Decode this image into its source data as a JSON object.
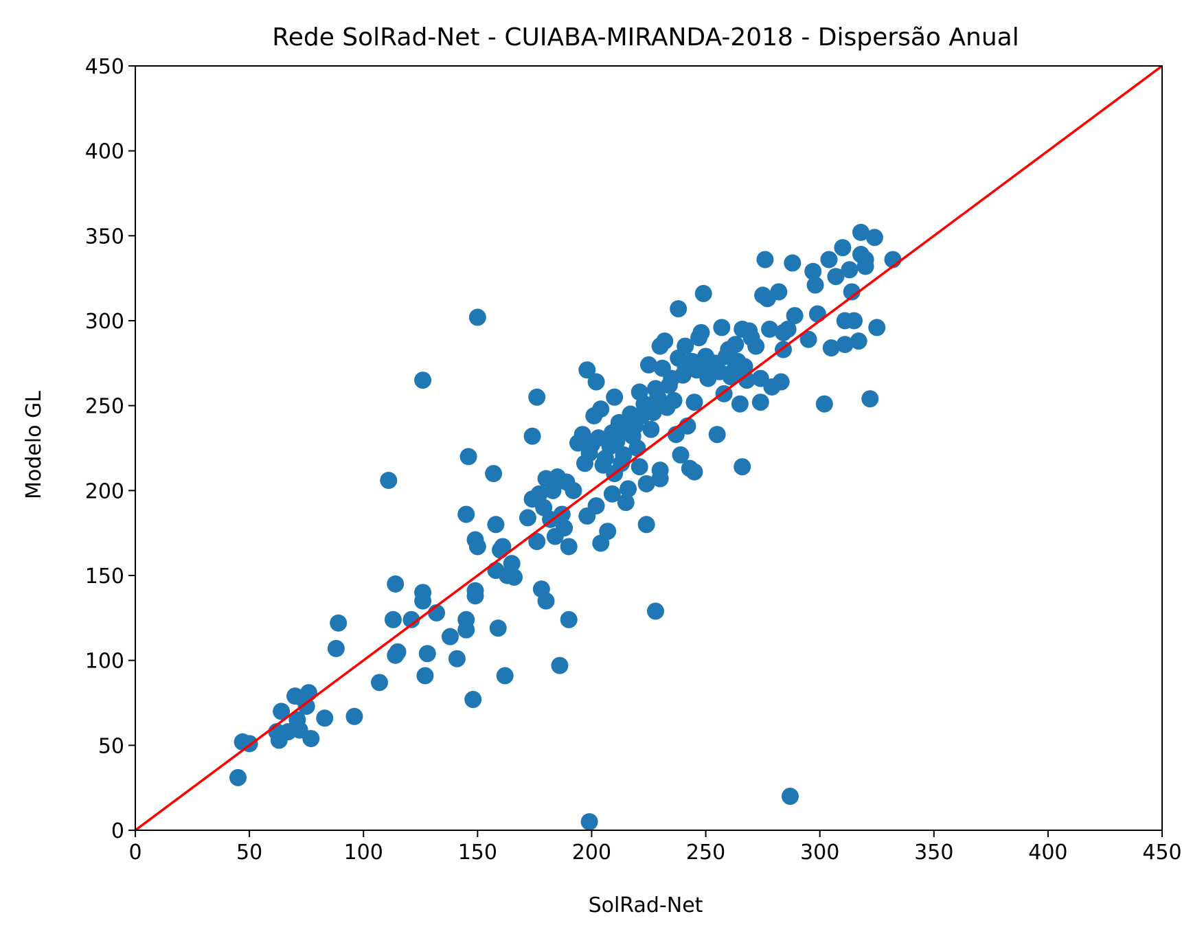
{
  "colors": {
    "points": "#1f77b4",
    "reference_line": "#ff0000",
    "axes": "#000000",
    "background": "#ffffff"
  },
  "chart_data": {
    "type": "scatter",
    "title": "Rede SolRad-Net - CUIABA-MIRANDA-2018 - Dispersão Anual",
    "xlabel": "SolRad-Net",
    "ylabel": "Modelo GL",
    "xlim": [
      0,
      450
    ],
    "ylim": [
      0,
      450
    ],
    "xticks": [
      0,
      50,
      100,
      150,
      200,
      250,
      300,
      350,
      400,
      450
    ],
    "yticks": [
      0,
      50,
      100,
      150,
      200,
      250,
      300,
      350,
      400,
      450
    ],
    "grid": false,
    "legend": "none",
    "reference_line": {
      "x": [
        0,
        450
      ],
      "y": [
        0,
        450
      ]
    },
    "series": [
      {
        "points": [
          [
            45,
            31
          ],
          [
            47,
            52
          ],
          [
            50,
            51
          ],
          [
            62,
            58
          ],
          [
            63,
            53
          ],
          [
            64,
            70
          ],
          [
            67,
            58
          ],
          [
            70,
            79
          ],
          [
            71,
            65
          ],
          [
            72,
            59
          ],
          [
            73,
            78
          ],
          [
            75,
            73
          ],
          [
            76,
            81
          ],
          [
            77,
            54
          ],
          [
            83,
            66
          ],
          [
            88,
            107
          ],
          [
            89,
            122
          ],
          [
            96,
            67
          ],
          [
            107,
            87
          ],
          [
            111,
            206
          ],
          [
            113,
            124
          ],
          [
            114,
            103
          ],
          [
            114,
            145
          ],
          [
            115,
            105
          ],
          [
            121,
            124
          ],
          [
            126,
            140
          ],
          [
            126,
            135
          ],
          [
            126,
            265
          ],
          [
            127,
            91
          ],
          [
            128,
            104
          ],
          [
            132,
            128
          ],
          [
            138,
            114
          ],
          [
            141,
            101
          ],
          [
            145,
            186
          ],
          [
            145,
            124
          ],
          [
            145,
            118
          ],
          [
            146,
            220
          ],
          [
            148,
            77
          ],
          [
            149,
            141
          ],
          [
            149,
            138
          ],
          [
            149,
            171
          ],
          [
            150,
            302
          ],
          [
            150,
            167
          ],
          [
            157,
            210
          ],
          [
            158,
            180
          ],
          [
            158,
            153
          ],
          [
            159,
            119
          ],
          [
            160,
            165
          ],
          [
            161,
            167
          ],
          [
            162,
            91
          ],
          [
            163,
            150
          ],
          [
            165,
            157
          ],
          [
            166,
            149
          ],
          [
            172,
            184
          ],
          [
            174,
            232
          ],
          [
            174,
            195
          ],
          [
            176,
            170
          ],
          [
            176,
            255
          ],
          [
            177,
            198
          ],
          [
            178,
            142
          ],
          [
            179,
            190
          ],
          [
            180,
            135
          ],
          [
            180,
            207
          ],
          [
            182,
            183
          ],
          [
            183,
            200
          ],
          [
            184,
            173
          ],
          [
            185,
            208
          ],
          [
            186,
            97
          ],
          [
            187,
            186
          ],
          [
            188,
            178
          ],
          [
            189,
            205
          ],
          [
            190,
            124
          ],
          [
            190,
            167
          ],
          [
            192,
            200
          ],
          [
            194,
            228
          ],
          [
            196,
            233
          ],
          [
            197,
            216
          ],
          [
            198,
            271
          ],
          [
            198,
            185
          ],
          [
            199,
            5
          ],
          [
            199,
            222
          ],
          [
            200,
            227
          ],
          [
            201,
            244
          ],
          [
            202,
            264
          ],
          [
            202,
            191
          ],
          [
            203,
            231
          ],
          [
            204,
            169
          ],
          [
            204,
            248
          ],
          [
            205,
            215
          ],
          [
            206,
            219
          ],
          [
            207,
            176
          ],
          [
            208,
            226
          ],
          [
            209,
            198
          ],
          [
            209,
            234
          ],
          [
            210,
            255
          ],
          [
            210,
            210
          ],
          [
            211,
            229
          ],
          [
            212,
            240
          ],
          [
            213,
            216
          ],
          [
            214,
            221
          ],
          [
            214,
            236
          ],
          [
            215,
            193
          ],
          [
            216,
            201
          ],
          [
            217,
            245
          ],
          [
            218,
            232
          ],
          [
            219,
            238
          ],
          [
            220,
            225
          ],
          [
            221,
            258
          ],
          [
            221,
            214
          ],
          [
            222,
            244
          ],
          [
            223,
            251
          ],
          [
            224,
            180
          ],
          [
            224,
            204
          ],
          [
            225,
            274
          ],
          [
            226,
            236
          ],
          [
            227,
            246
          ],
          [
            228,
            129
          ],
          [
            228,
            260
          ],
          [
            229,
            255
          ],
          [
            230,
            207
          ],
          [
            230,
            212
          ],
          [
            230,
            285
          ],
          [
            231,
            272
          ],
          [
            232,
            288
          ],
          [
            233,
            249
          ],
          [
            234,
            262
          ],
          [
            235,
            266
          ],
          [
            236,
            253
          ],
          [
            237,
            233
          ],
          [
            238,
            278
          ],
          [
            238,
            307
          ],
          [
            239,
            221
          ],
          [
            240,
            268
          ],
          [
            241,
            274
          ],
          [
            241,
            285
          ],
          [
            242,
            238
          ],
          [
            243,
            213
          ],
          [
            244,
            276
          ],
          [
            245,
            211
          ],
          [
            245,
            252
          ],
          [
            246,
            271
          ],
          [
            247,
            290
          ],
          [
            248,
            293
          ],
          [
            249,
            316
          ],
          [
            250,
            279
          ],
          [
            251,
            266
          ],
          [
            252,
            271
          ],
          [
            254,
            275
          ],
          [
            255,
            233
          ],
          [
            256,
            270
          ],
          [
            257,
            296
          ],
          [
            258,
            257
          ],
          [
            259,
            279
          ],
          [
            260,
            283
          ],
          [
            261,
            267
          ],
          [
            262,
            270
          ],
          [
            263,
            286
          ],
          [
            264,
            276
          ],
          [
            265,
            251
          ],
          [
            266,
            295
          ],
          [
            266,
            214
          ],
          [
            267,
            273
          ],
          [
            268,
            265
          ],
          [
            269,
            294
          ],
          [
            270,
            290
          ],
          [
            272,
            285
          ],
          [
            274,
            252
          ],
          [
            274,
            266
          ],
          [
            275,
            315
          ],
          [
            276,
            336
          ],
          [
            277,
            313
          ],
          [
            278,
            295
          ],
          [
            279,
            261
          ],
          [
            282,
            317
          ],
          [
            283,
            264
          ],
          [
            284,
            293
          ],
          [
            284,
            283
          ],
          [
            286,
            295
          ],
          [
            287,
            20
          ],
          [
            288,
            334
          ],
          [
            289,
            303
          ],
          [
            295,
            289
          ],
          [
            297,
            329
          ],
          [
            298,
            321
          ],
          [
            299,
            304
          ],
          [
            302,
            251
          ],
          [
            304,
            336
          ],
          [
            305,
            284
          ],
          [
            307,
            326
          ],
          [
            310,
            343
          ],
          [
            311,
            300
          ],
          [
            311,
            286
          ],
          [
            313,
            330
          ],
          [
            314,
            317
          ],
          [
            315,
            300
          ],
          [
            317,
            288
          ],
          [
            318,
            339
          ],
          [
            318,
            352
          ],
          [
            320,
            332
          ],
          [
            320,
            336
          ],
          [
            322,
            254
          ],
          [
            324,
            349
          ],
          [
            325,
            296
          ],
          [
            332,
            336
          ]
        ]
      }
    ]
  }
}
